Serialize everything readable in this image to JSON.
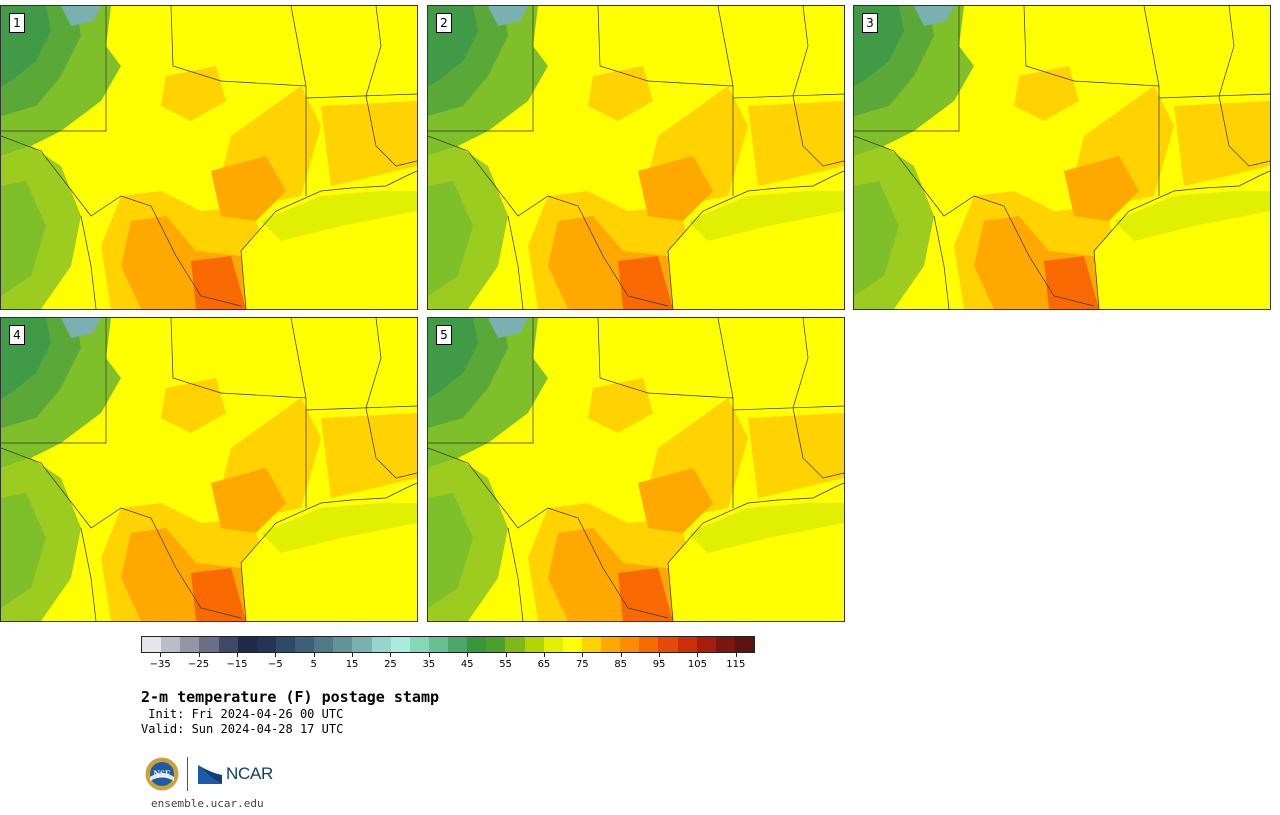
{
  "panels": [
    {
      "label": "1"
    },
    {
      "label": "2"
    },
    {
      "label": "3"
    },
    {
      "label": "4"
    },
    {
      "label": "5"
    }
  ],
  "colorbar": {
    "colors": [
      "#e6e6ea",
      "#bcbcc8",
      "#9496a8",
      "#6c6f88",
      "#3e4868",
      "#1e2a48",
      "#22345a",
      "#2e4a6a",
      "#3c6078",
      "#4e7a88",
      "#62949a",
      "#7ab0b0",
      "#96d4cc",
      "#a8ecde",
      "#84d8b8",
      "#66c090",
      "#4ca86a",
      "#38963c",
      "#4aa02a",
      "#80b818",
      "#b4d400",
      "#e0f000",
      "#ffff00",
      "#ffd200",
      "#ffa800",
      "#ff8c00",
      "#f86a00",
      "#e84808",
      "#cc2e08",
      "#a81c0c",
      "#7e1410",
      "#5c120e"
    ],
    "ticks": [
      "−35",
      "−25",
      "−15",
      "−5",
      "5",
      "15",
      "25",
      "35",
      "45",
      "55",
      "65",
      "75",
      "85",
      "95",
      "105",
      "115"
    ]
  },
  "title": "2-m temperature (F) postage stamp",
  "init": " Init: Fri 2024-04-26 00 UTC",
  "valid": "Valid: Sun 2024-04-28 17 UTC",
  "logos": {
    "nsf": "NSF",
    "ncar": "NCAR"
  },
  "site": "ensemble.ucar.edu"
}
